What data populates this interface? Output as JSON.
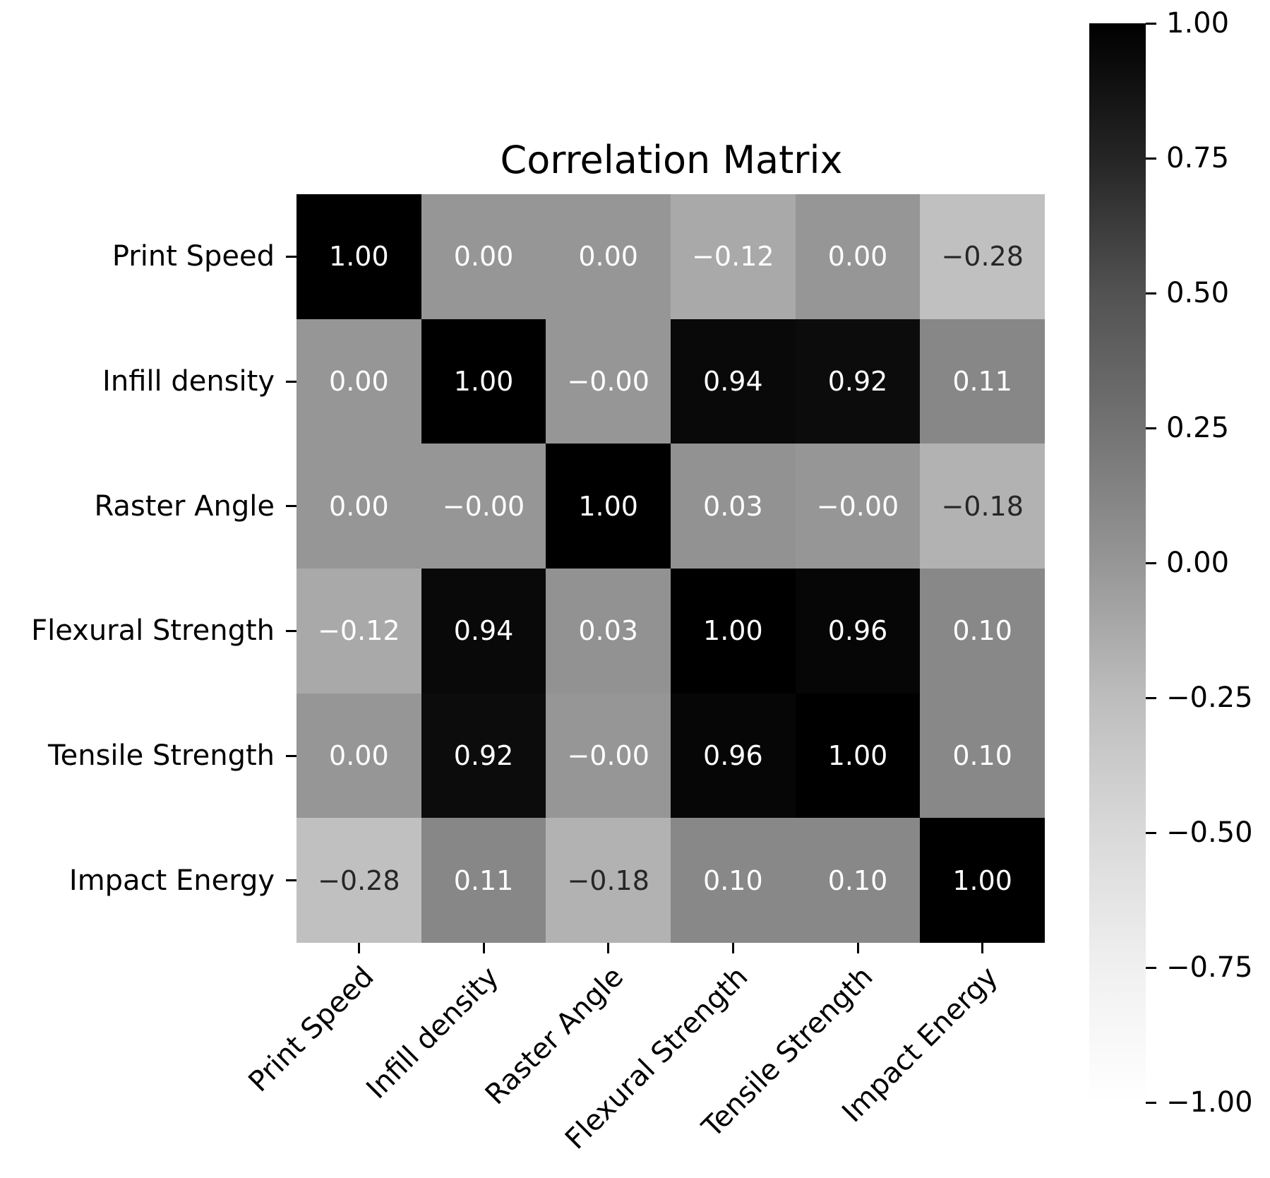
{
  "chart_data": {
    "type": "heatmap",
    "title": "Correlation Matrix",
    "categories": [
      "Print Speed",
      "Infill density",
      "Raster Angle",
      "Flexural Strength",
      "Tensile Strength",
      "Impact Energy"
    ],
    "values": [
      [
        1.0,
        0.0,
        0.0,
        -0.12,
        0.0,
        -0.28
      ],
      [
        0.0,
        1.0,
        0.0,
        0.94,
        0.92,
        0.11
      ],
      [
        0.0,
        0.0,
        1.0,
        0.03,
        0.0,
        -0.18
      ],
      [
        -0.12,
        0.94,
        0.03,
        1.0,
        0.96,
        0.1
      ],
      [
        0.0,
        0.92,
        0.0,
        0.96,
        1.0,
        0.1
      ],
      [
        -0.28,
        0.11,
        -0.18,
        0.1,
        0.1,
        1.0
      ]
    ],
    "cell_labels": [
      [
        "1.00",
        "0.00",
        "0.00",
        "−0.12",
        "0.00",
        "−0.28"
      ],
      [
        "0.00",
        "1.00",
        "−0.00",
        "0.94",
        "0.92",
        "0.11"
      ],
      [
        "0.00",
        "−0.00",
        "1.00",
        "0.03",
        "−0.00",
        "−0.18"
      ],
      [
        "−0.12",
        "0.94",
        "0.03",
        "1.00",
        "0.96",
        "0.10"
      ],
      [
        "0.00",
        "0.92",
        "−0.00",
        "0.96",
        "1.00",
        "0.10"
      ],
      [
        "−0.28",
        "0.11",
        "−0.18",
        "0.10",
        "0.10",
        "1.00"
      ]
    ],
    "colormap": "Greys",
    "vmin": -1,
    "vmax": 1,
    "colorbar_tick_labels": [
      "1.00",
      "0.75",
      "0.50",
      "0.25",
      "0.00",
      "−0.25",
      "−0.50",
      "−0.75",
      "−1.00"
    ],
    "annotation_text_light": "#ffffff",
    "annotation_text_dark": "#262626",
    "legend_position": "right",
    "grid": false
  }
}
